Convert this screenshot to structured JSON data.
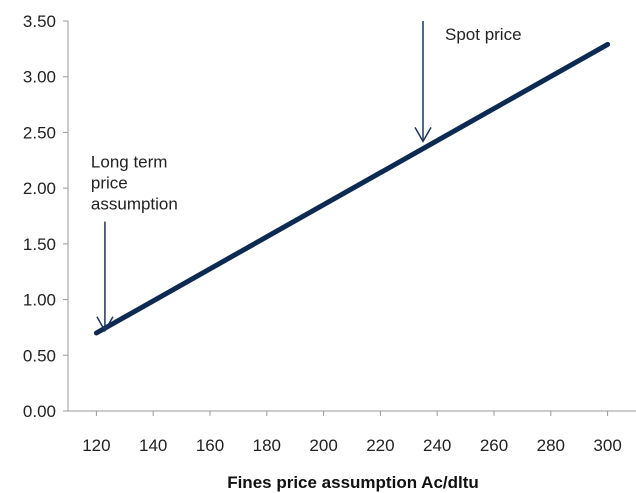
{
  "chart_data": {
    "type": "line",
    "title": "",
    "xlabel": "Fines price assumption Ac/dltu",
    "ylabel": "",
    "x_ticks": [
      120,
      140,
      160,
      180,
      200,
      220,
      240,
      260,
      280,
      300
    ],
    "x_tick_labels": [
      "120",
      "140",
      "160",
      "180",
      "200",
      "220",
      "240",
      "260",
      "280",
      "300"
    ],
    "y_ticks": [
      0,
      0.5,
      1,
      1.5,
      2,
      2.5,
      3,
      3.5
    ],
    "y_tick_labels": [
      "0.00",
      "0.50",
      "1.00",
      "1.50",
      "2.00",
      "2.50",
      "3.00",
      "3.50"
    ],
    "xlim": [
      110,
      310
    ],
    "ylim": [
      0,
      3.5
    ],
    "grid": false,
    "series": [
      {
        "x": [
          120,
          300
        ],
        "y": [
          0.7,
          3.29
        ],
        "color": "#0d2a52"
      }
    ],
    "annotations": [
      {
        "lines": [
          "Spot price"
        ],
        "arrow_x": 235,
        "arrow_y_from": 3.5,
        "arrow_y_to": 2.42
      },
      {
        "lines": [
          "Long term",
          "price",
          "assumption"
        ],
        "arrow_x": 123,
        "arrow_y_from": 1.7,
        "arrow_y_to": 0.72
      }
    ],
    "axis_color": "#9a9a9a"
  }
}
